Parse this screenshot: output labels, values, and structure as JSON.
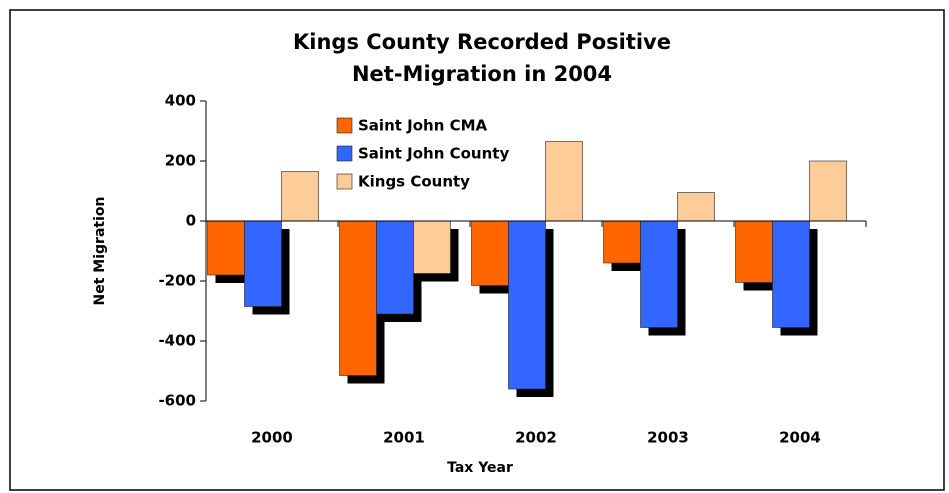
{
  "chart_data": {
    "type": "bar",
    "title": [
      "Kings County Recorded Positive",
      "Net-Migration in 2004"
    ],
    "x_label": "Tax Year",
    "y_label": "Net Migration",
    "categories": [
      "2000",
      "2001",
      "2002",
      "2003",
      "2004"
    ],
    "series": [
      {
        "name": "Saint John CMA",
        "color": "#ff6600",
        "values": [
          -180,
          -515,
          -215,
          -140,
          -205
        ]
      },
      {
        "name": "Saint John County",
        "color": "#3366ff",
        "values": [
          -285,
          -310,
          -560,
          -355,
          -355
        ]
      },
      {
        "name": "Kings County",
        "color": "#ffcc99",
        "values": [
          165,
          -175,
          265,
          95,
          200
        ]
      }
    ],
    "ylim": [
      -600,
      400
    ],
    "yticks": [
      -600,
      -400,
      -200,
      0,
      200,
      400
    ],
    "grid": false
  }
}
